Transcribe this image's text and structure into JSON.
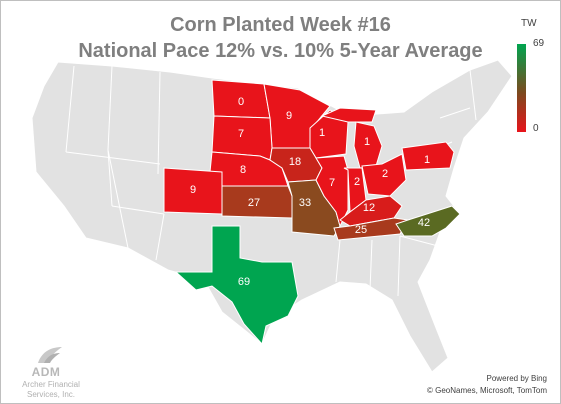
{
  "title": {
    "line1": "Corn Planted Week #16",
    "line2": "National Pace 12% vs. 10% 5-Year Average"
  },
  "legend": {
    "label": "TW",
    "max": "69",
    "min": "0",
    "colors": {
      "high": "#00a550",
      "mid": "#7b4a1e",
      "low": "#e8141b"
    }
  },
  "base_map_color": "#e2e2e2",
  "states": {
    "north_dakota": {
      "abbr": "ND",
      "value": "0"
    },
    "minnesota": {
      "abbr": "MN",
      "value": "9"
    },
    "south_dakota": {
      "abbr": "SD",
      "value": "7"
    },
    "wisconsin": {
      "abbr": "WI",
      "value": "1"
    },
    "michigan": {
      "abbr": "MI",
      "value": "1"
    },
    "nebraska": {
      "abbr": "NE",
      "value": "8"
    },
    "iowa": {
      "abbr": "IA",
      "value": "18"
    },
    "colorado": {
      "abbr": "CO",
      "value": "9"
    },
    "kansas": {
      "abbr": "KS",
      "value": "27"
    },
    "missouri": {
      "abbr": "MO",
      "value": "33"
    },
    "illinois": {
      "abbr": "IL",
      "value": "7"
    },
    "indiana": {
      "abbr": "IN",
      "value": "2"
    },
    "ohio": {
      "abbr": "OH",
      "value": "2"
    },
    "pennsylvania": {
      "abbr": "PA",
      "value": "1"
    },
    "kentucky": {
      "abbr": "KY",
      "value": "12"
    },
    "tennessee": {
      "abbr": "TN",
      "value": "25"
    },
    "north_carolina": {
      "abbr": "NC",
      "value": "42"
    },
    "texas": {
      "abbr": "TX",
      "value": "69"
    }
  },
  "logo": {
    "name": "ADM",
    "subtitle_line1": "Archer Financial",
    "subtitle_line2": "Services, Inc."
  },
  "credits": {
    "line1": "Powered by Bing",
    "line2": "© GeoNames, Microsoft, TomTom"
  }
}
